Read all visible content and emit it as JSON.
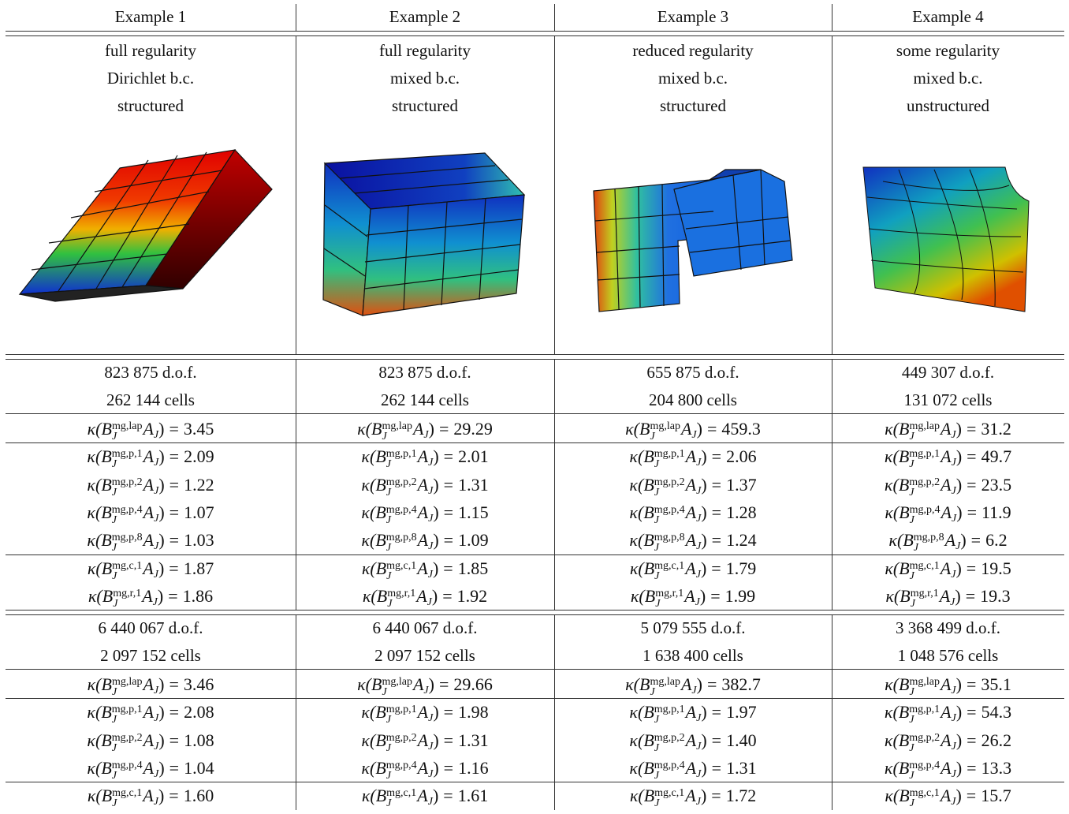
{
  "columns": [
    "Example 1",
    "Example 2",
    "Example 3",
    "Example 4"
  ],
  "descriptions": [
    [
      "full regularity",
      "Dirichlet b.c.",
      "structured"
    ],
    [
      "full regularity",
      "mixed b.c.",
      "structured"
    ],
    [
      "reduced regularity",
      "mixed b.c.",
      "structured"
    ],
    [
      "some regularity",
      "mixed b.c.",
      "unstructured"
    ]
  ],
  "formula": {
    "kappa": "κ(",
    "B": "B",
    "sub": "J",
    "A": "A",
    "close": ")",
    "eq": "="
  },
  "blocks": [
    {
      "dof": [
        "823 875 d.o.f.",
        "823 875 d.o.f.",
        "655 875 d.o.f.",
        "449 307 d.o.f."
      ],
      "cells": [
        "262 144 cells",
        "262 144 cells",
        "204 800 cells",
        "131 072 cells"
      ],
      "groups": [
        [
          {
            "sup": "mg,lap",
            "values": [
              "3.45",
              "29.29",
              "459.3",
              "31.2"
            ]
          }
        ],
        [
          {
            "sup": "mg,p,1",
            "values": [
              "2.09",
              "2.01",
              "2.06",
              "49.7"
            ]
          },
          {
            "sup": "mg,p,2",
            "values": [
              "1.22",
              "1.31",
              "1.37",
              "23.5"
            ]
          },
          {
            "sup": "mg,p,4",
            "values": [
              "1.07",
              "1.15",
              "1.28",
              "11.9"
            ]
          },
          {
            "sup": "mg,p,8",
            "values": [
              "1.03",
              "1.09",
              "1.24",
              "6.2"
            ]
          }
        ],
        [
          {
            "sup": "mg,c,1",
            "values": [
              "1.87",
              "1.85",
              "1.79",
              "19.5"
            ]
          },
          {
            "sup": "mg,r,1",
            "values": [
              "1.86",
              "1.92",
              "1.99",
              "19.3"
            ]
          }
        ]
      ]
    },
    {
      "dof": [
        "6 440 067 d.o.f.",
        "6 440 067 d.o.f.",
        "5 079 555 d.o.f.",
        "3 368 499 d.o.f."
      ],
      "cells": [
        "2 097 152 cells",
        "2 097 152 cells",
        "1 638 400 cells",
        "1 048 576 cells"
      ],
      "groups": [
        [
          {
            "sup": "mg,lap",
            "values": [
              "3.46",
              "29.66",
              "382.7",
              "35.1"
            ]
          }
        ],
        [
          {
            "sup": "mg,p,1",
            "values": [
              "2.08",
              "1.98",
              "1.97",
              "54.3"
            ]
          },
          {
            "sup": "mg,p,2",
            "values": [
              "1.08",
              "1.31",
              "1.40",
              "26.2"
            ]
          },
          {
            "sup": "mg,p,4",
            "values": [
              "1.04",
              "1.16",
              "1.31",
              "13.3"
            ]
          }
        ],
        [
          {
            "sup": "mg,c,1",
            "values": [
              "1.60",
              "1.61",
              "1.72",
              "15.7"
            ]
          }
        ]
      ]
    }
  ]
}
